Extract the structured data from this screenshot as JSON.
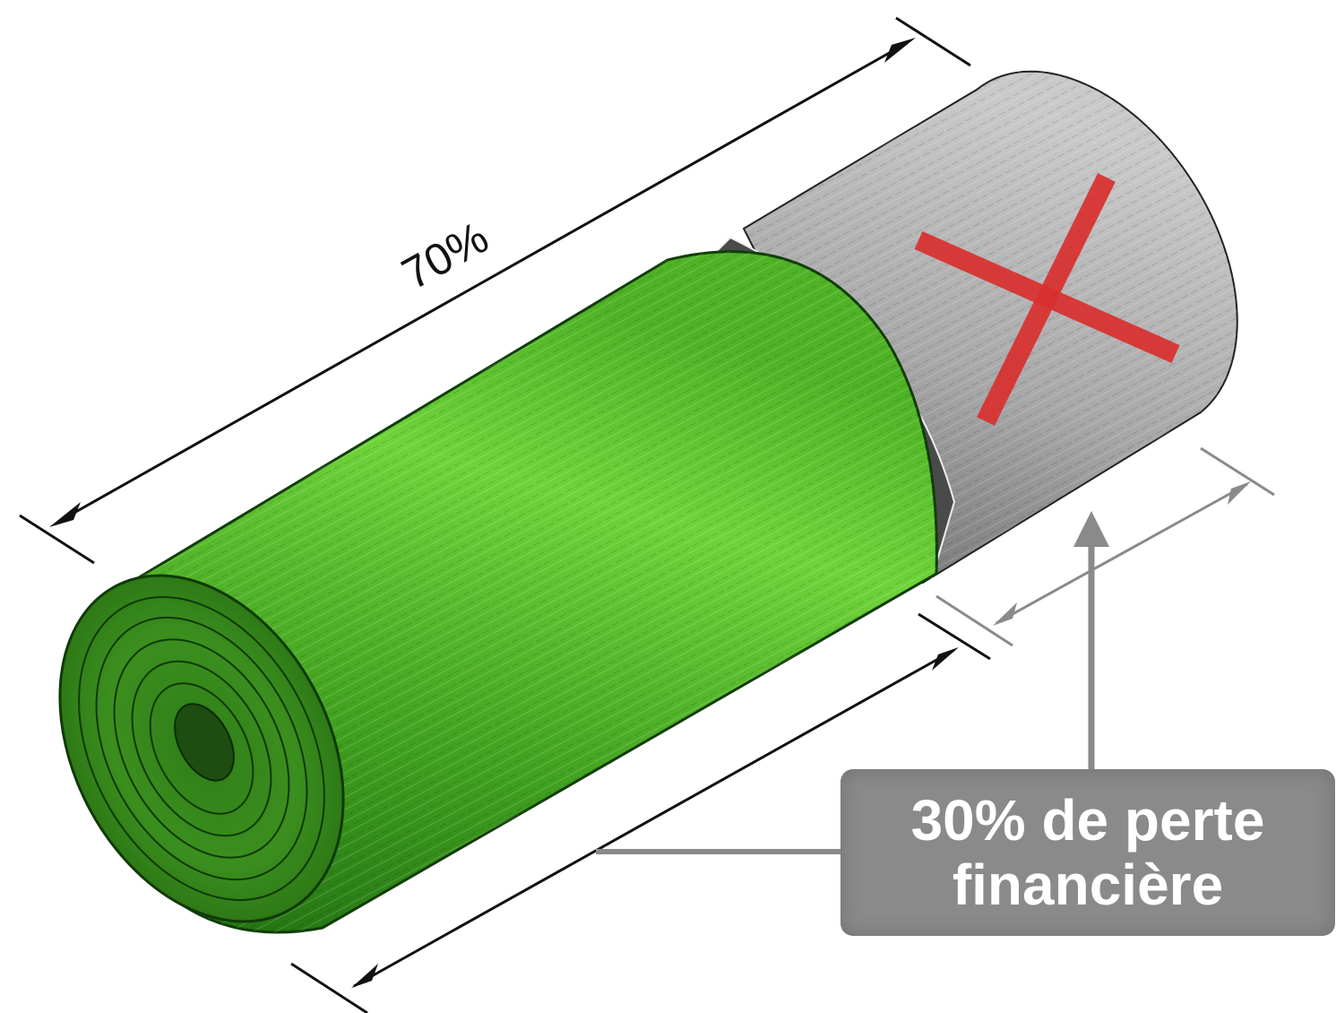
{
  "illustration": {
    "top_dimension_label": "70%",
    "callout": {
      "line1": "30% de perte",
      "line2": "financière"
    },
    "colors": {
      "grass_light": "#6fd43a",
      "grass_mid": "#3f9f1f",
      "grass_dark": "#1f6d10",
      "grey_section": "#a5a5a5",
      "cross": "#d9302e",
      "callout_bg": "#8a8a8a",
      "callout_text": "#ffffff"
    },
    "icons": [
      "cross-mark-icon"
    ]
  }
}
